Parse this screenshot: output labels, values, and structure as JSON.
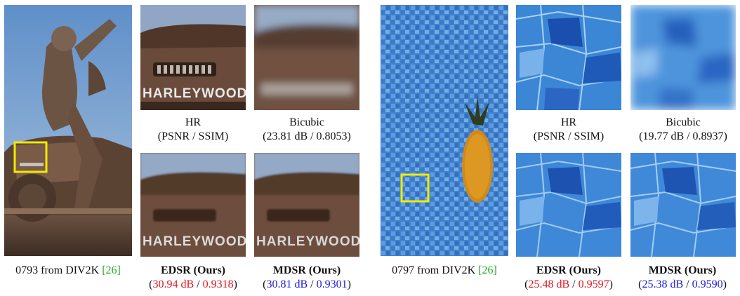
{
  "left_set": {
    "source_caption": "0793 from DIV2K",
    "source_ref": "[26]",
    "crop_text": "HARLEYWOOD",
    "hr": {
      "name": "HR",
      "metric": "(PSNR / SSIM)"
    },
    "bicubic": {
      "name": "Bicubic",
      "metric": "(23.81 dB / 0.8053)"
    },
    "edsr": {
      "name": "EDSR (Ours)",
      "psnr": "30.94 dB",
      "ssim": "0.9318"
    },
    "mdsr": {
      "name": "MDSR (Ours)",
      "psnr": "30.81 dB",
      "ssim": "0.9301"
    }
  },
  "right_set": {
    "source_caption": "0797 from DIV2K",
    "source_ref": "[26]",
    "hr": {
      "name": "HR",
      "metric": "(PSNR / SSIM)"
    },
    "bicubic": {
      "name": "Bicubic",
      "metric": "(19.77 dB / 0.8937)"
    },
    "edsr": {
      "name": "EDSR (Ours)",
      "psnr": "25.48 dB",
      "ssim": "0.9597"
    },
    "mdsr": {
      "name": "MDSR (Ours)",
      "psnr": "25.38 dB",
      "ssim": "0.9590"
    }
  },
  "colors": {
    "ours_best": "#e8121c",
    "ours_second": "#1a1adf",
    "ref_link": "#22aa22",
    "highlight_box": "#f2ea00"
  }
}
